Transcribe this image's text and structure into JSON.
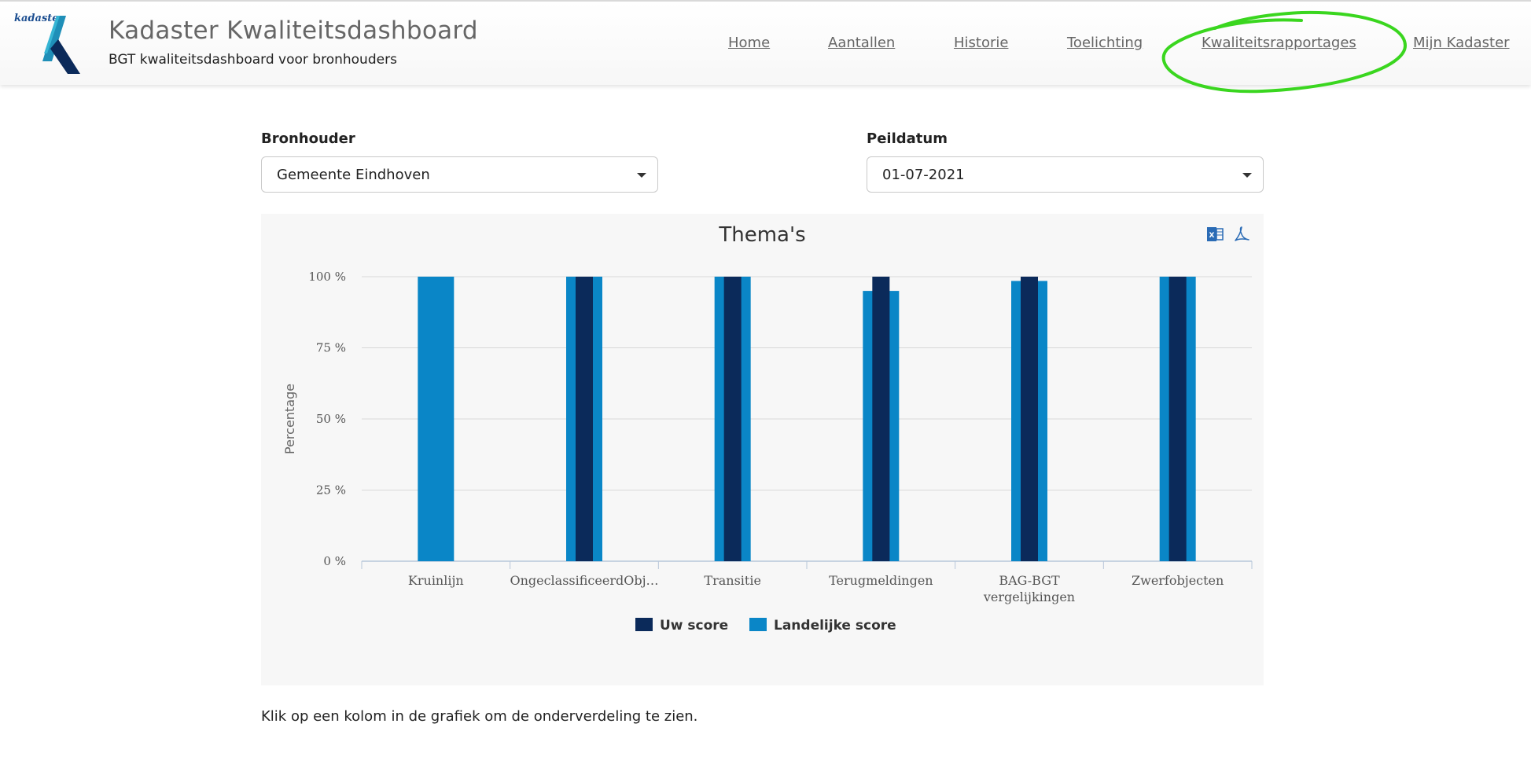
{
  "header": {
    "logo_text": "kadaster",
    "title": "Kadaster Kwaliteitsdashboard",
    "subtitle": "BGT kwaliteitsdashboard voor bronhouders",
    "nav": [
      "Home",
      "Aantallen",
      "Historie",
      "Toelichting",
      "Kwaliteitsrapportages",
      "Mijn Kadaster"
    ]
  },
  "filters": {
    "bronhouder_label": "Bronhouder",
    "bronhouder_value": "Gemeente Eindhoven",
    "peildatum_label": "Peildatum",
    "peildatum_value": "01-07-2021"
  },
  "colors": {
    "uw_score": "#0b2a5a",
    "landelijke_score": "#0a86c7",
    "annotation": "#3ad61f"
  },
  "chart_data": {
    "type": "bar",
    "title": "Thema's",
    "ylabel": "Percentage",
    "xlabel": "",
    "ylim": [
      0,
      100
    ],
    "yticks": [
      0,
      25,
      50,
      75,
      100
    ],
    "ytick_labels": [
      "0 %",
      "25 %",
      "50 %",
      "75 %",
      "100 %"
    ],
    "categories": [
      "Kruinlijn",
      "OngeclassificeerdObj…",
      "Transitie",
      "Terugmeldingen",
      "BAG-BGT vergelijkingen",
      "Zwerfobjecten"
    ],
    "series": [
      {
        "name": "Uw score",
        "color": "#0b2a5a",
        "values": [
          null,
          100,
          100,
          100,
          100,
          100
        ]
      },
      {
        "name": "Landelijke score",
        "color": "#0a86c7",
        "values": [
          100,
          100,
          100,
          95,
          98.5,
          100
        ]
      }
    ],
    "legend_position": "bottom-center",
    "grid": true
  },
  "footnote": "Klik op een kolom in de grafiek om de onderverdeling te zien."
}
